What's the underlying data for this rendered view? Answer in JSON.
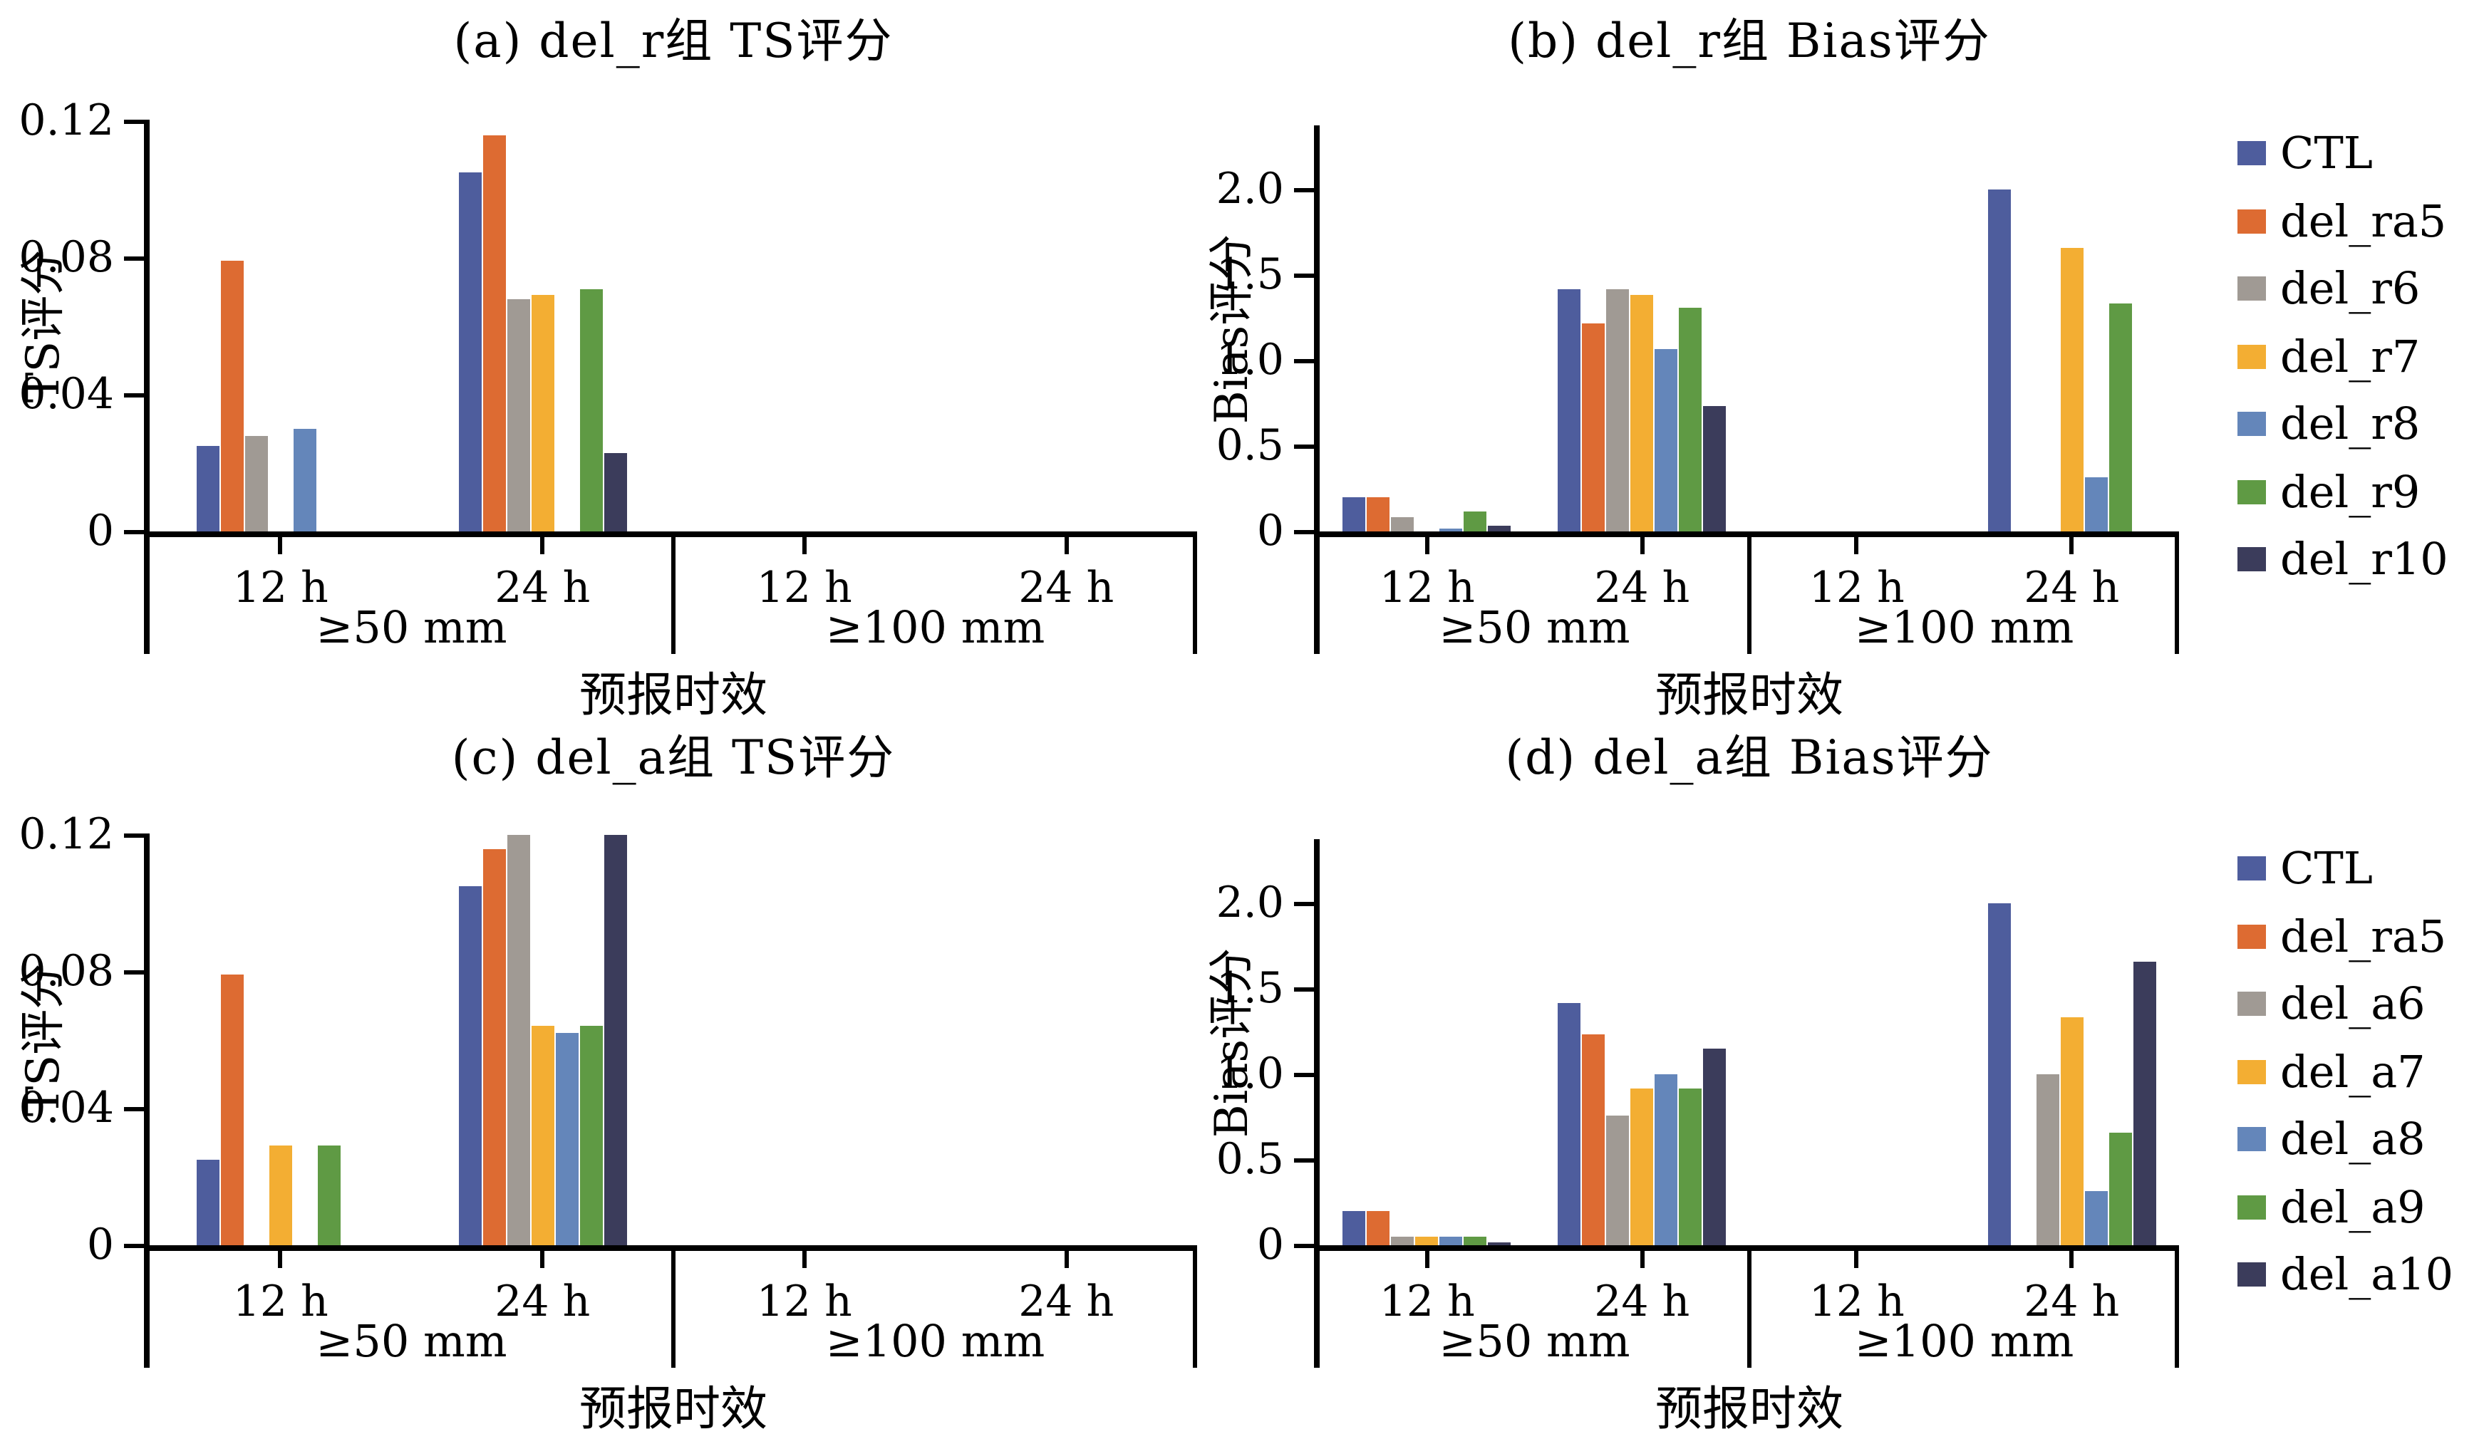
{
  "chart_data": [
    {
      "id": "a",
      "type": "bar",
      "title": "(a) del_r组 TS评分",
      "ylabel": "TS评分",
      "xlabel": "预报时效",
      "ylim": [
        0,
        0.12
      ],
      "grid": false,
      "yticks": [
        {
          "value": 0,
          "label": "0"
        },
        {
          "value": 0.04,
          "label": "0.04"
        },
        {
          "value": 0.08,
          "label": "0.08"
        },
        {
          "value": 0.12,
          "label": "0.12"
        }
      ],
      "categories": [
        "12 h",
        "24 h",
        "12 h",
        "24 h"
      ],
      "group_labels": [
        "≥50 mm",
        "≥100 mm"
      ],
      "series": [
        {
          "name": "CTL",
          "color": "#4e5d9d",
          "values": [
            0.025,
            0.105,
            0,
            0
          ]
        },
        {
          "name": "del_ra5",
          "color": "#dd6b32",
          "values": [
            0.079,
            0.116,
            0,
            0
          ]
        },
        {
          "name": "del_r6",
          "color": "#a09a94",
          "values": [
            0.028,
            0.068,
            0,
            0
          ]
        },
        {
          "name": "del_r7",
          "color": "#f3ae33",
          "values": [
            0,
            0.069,
            0,
            0
          ]
        },
        {
          "name": "del_r8",
          "color": "#6486ba",
          "values": [
            0.03,
            0,
            0,
            0
          ]
        },
        {
          "name": "del_r9",
          "color": "#5f9a44",
          "values": [
            0,
            0.071,
            0,
            0
          ]
        },
        {
          "name": "del_r10",
          "color": "#3b3c5b",
          "values": [
            0,
            0.023,
            0,
            0
          ]
        }
      ],
      "legend": null
    },
    {
      "id": "b",
      "type": "bar",
      "title": "(b) del_r组 Bias评分",
      "ylabel": "Bias评分",
      "xlabel": "预报时效",
      "ylim": [
        0,
        2.2
      ],
      "grid": false,
      "yticks": [
        {
          "value": 0,
          "label": "0"
        },
        {
          "value": 0.5,
          "label": "0.5"
        },
        {
          "value": 1.0,
          "label": "1.0"
        },
        {
          "value": 1.5,
          "label": "1.5"
        },
        {
          "value": 2.0,
          "label": "2.0"
        }
      ],
      "categories": [
        "12 h",
        "24 h",
        "12 h",
        "24 h"
      ],
      "group_labels": [
        "≥50 mm",
        "≥100 mm"
      ],
      "series": [
        {
          "name": "CTL",
          "color": "#4e5d9d",
          "values": [
            0.2,
            1.42,
            0,
            2.0
          ]
        },
        {
          "name": "del_ra5",
          "color": "#dd6b32",
          "values": [
            0.2,
            1.22,
            0,
            0
          ]
        },
        {
          "name": "del_r6",
          "color": "#a09a94",
          "values": [
            0.08,
            1.42,
            0,
            0
          ]
        },
        {
          "name": "del_r7",
          "color": "#f3ae33",
          "values": [
            0,
            1.38,
            0,
            1.66
          ]
        },
        {
          "name": "del_r8",
          "color": "#6486ba",
          "values": [
            0.02,
            1.07,
            0,
            0.32
          ]
        },
        {
          "name": "del_r9",
          "color": "#5f9a44",
          "values": [
            0.12,
            1.31,
            0,
            1.33
          ]
        },
        {
          "name": "del_r10",
          "color": "#3b3c5b",
          "values": [
            0.03,
            0.73,
            0,
            0
          ]
        }
      ],
      "legend": {
        "position": "right",
        "entries": [
          "CTL",
          "del_ra5",
          "del_r6",
          "del_r7",
          "del_r8",
          "del_r9",
          "del_r10"
        ]
      }
    },
    {
      "id": "c",
      "type": "bar",
      "title": "(c) del_a组 TS评分",
      "ylabel": "TS评分",
      "xlabel": "预报时效",
      "ylim": [
        0,
        0.12
      ],
      "grid": false,
      "yticks": [
        {
          "value": 0,
          "label": "0"
        },
        {
          "value": 0.04,
          "label": "0.04"
        },
        {
          "value": 0.08,
          "label": "0.08"
        },
        {
          "value": 0.12,
          "label": "0.12"
        }
      ],
      "categories": [
        "12 h",
        "24 h",
        "12 h",
        "24 h"
      ],
      "group_labels": [
        "≥50 mm",
        "≥100 mm"
      ],
      "series": [
        {
          "name": "CTL",
          "color": "#4e5d9d",
          "values": [
            0.025,
            0.105,
            0,
            0
          ]
        },
        {
          "name": "del_ra5",
          "color": "#dd6b32",
          "values": [
            0.079,
            0.116,
            0,
            0
          ]
        },
        {
          "name": "del_a6",
          "color": "#a09a94",
          "values": [
            0,
            0.12,
            0,
            0
          ]
        },
        {
          "name": "del_a7",
          "color": "#f3ae33",
          "values": [
            0.029,
            0.064,
            0,
            0
          ]
        },
        {
          "name": "del_a8",
          "color": "#6486ba",
          "values": [
            0,
            0.062,
            0,
            0
          ]
        },
        {
          "name": "del_a9",
          "color": "#5f9a44",
          "values": [
            0.029,
            0.064,
            0,
            0
          ]
        },
        {
          "name": "del_a10",
          "color": "#3b3c5b",
          "values": [
            0,
            0.12,
            0,
            0
          ]
        }
      ],
      "legend": null
    },
    {
      "id": "d",
      "type": "bar",
      "title": "(d) del_a组 Bias评分",
      "ylabel": "Bias评分",
      "xlabel": "预报时效",
      "ylim": [
        0,
        2.2
      ],
      "grid": false,
      "yticks": [
        {
          "value": 0,
          "label": "0"
        },
        {
          "value": 0.5,
          "label": "0.5"
        },
        {
          "value": 1.0,
          "label": "1.0"
        },
        {
          "value": 1.5,
          "label": "1.5"
        },
        {
          "value": 2.0,
          "label": "2.0"
        }
      ],
      "categories": [
        "12 h",
        "24 h",
        "12 h",
        "24 h"
      ],
      "group_labels": [
        "≥50 mm",
        "≥100 mm"
      ],
      "series": [
        {
          "name": "CTL",
          "color": "#4e5d9d",
          "values": [
            0.2,
            1.42,
            0,
            2.0
          ]
        },
        {
          "name": "del_ra5",
          "color": "#dd6b32",
          "values": [
            0.2,
            1.23,
            0,
            0
          ]
        },
        {
          "name": "del_a6",
          "color": "#a09a94",
          "values": [
            0.05,
            0.76,
            0,
            1.0
          ]
        },
        {
          "name": "del_a7",
          "color": "#f3ae33",
          "values": [
            0.05,
            0.92,
            0,
            1.33
          ]
        },
        {
          "name": "del_a8",
          "color": "#6486ba",
          "values": [
            0.05,
            1.0,
            0,
            0.32
          ]
        },
        {
          "name": "del_a9",
          "color": "#5f9a44",
          "values": [
            0.05,
            0.92,
            0,
            0.66
          ]
        },
        {
          "name": "del_a10",
          "color": "#3b3c5b",
          "values": [
            0.02,
            1.15,
            0,
            1.66
          ]
        }
      ],
      "legend": {
        "position": "right",
        "entries": [
          "CTL",
          "del_ra5",
          "del_a6",
          "del_a7",
          "del_a8",
          "del_a9",
          "del_a10"
        ]
      }
    }
  ]
}
